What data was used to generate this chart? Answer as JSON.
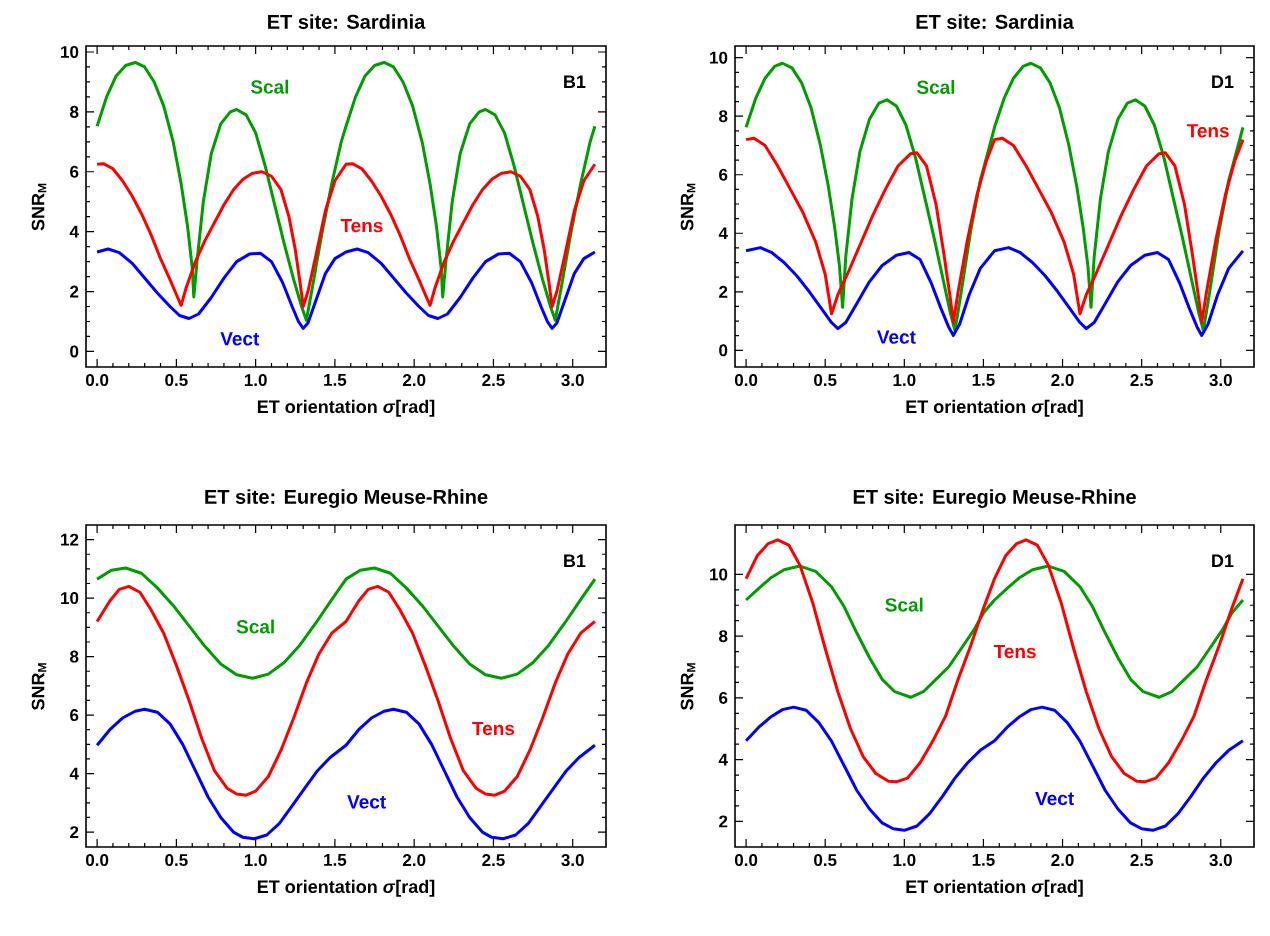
{
  "chart_data": [
    {
      "type": "line",
      "title": "ET site: Sardinia",
      "xlabel": "ET orientation *σ*[rad]",
      "ylabel": "SNR$_{M}$",
      "annotations": [
        "B1"
      ],
      "xlim": [
        -0.07,
        3.21
      ],
      "ylim": [
        -0.52,
        10.2
      ],
      "xticks": [
        {
          "value": 0,
          "label": "0.0"
        },
        {
          "value": 0.5,
          "label": "0.5"
        },
        {
          "value": 1,
          "label": "1.0"
        },
        {
          "value": 1.5,
          "label": "1.5"
        },
        {
          "value": 2,
          "label": "2.0"
        },
        {
          "value": 2.5,
          "label": "2.5"
        },
        {
          "value": 3,
          "label": "3.0"
        }
      ],
      "yticks": [
        0,
        2,
        4,
        6,
        8,
        10
      ],
      "series": [
        {
          "name": "Scal",
          "color": "#009c00",
          "x": [
            0,
            0.06,
            0.12,
            0.18,
            0.24,
            0.3,
            0.36,
            0.42,
            0.48,
            0.53,
            0.57,
            0.6,
            0.61,
            0.63,
            0.67,
            0.72,
            0.78,
            0.84,
            0.88,
            0.94,
            1.0,
            1.06,
            1.12,
            1.18,
            1.24,
            1.29,
            1.32,
            1.36,
            1.42,
            1.48,
            1.54,
            1.57,
            1.63,
            1.69,
            1.75,
            1.81,
            1.87,
            1.93,
            1.99,
            2.05,
            2.1,
            2.14,
            2.17,
            2.18,
            2.2,
            2.24,
            2.29,
            2.35,
            2.41,
            2.45,
            2.51,
            2.57,
            2.63,
            2.69,
            2.75,
            2.81,
            2.86,
            2.89,
            2.93,
            2.99,
            3.05,
            3.11,
            3.14
          ],
          "values": [
            7.52,
            8.5,
            9.2,
            9.55,
            9.65,
            9.5,
            9.0,
            8.2,
            7.0,
            5.6,
            4.2,
            2.8,
            1.82,
            3.0,
            5.0,
            6.6,
            7.6,
            8.0,
            8.08,
            7.9,
            7.3,
            6.2,
            4.9,
            3.6,
            2.4,
            1.5,
            1.04,
            2.2,
            4.0,
            5.6,
            7.0,
            7.52,
            8.5,
            9.2,
            9.55,
            9.65,
            9.5,
            9.0,
            8.2,
            7.0,
            5.6,
            4.2,
            2.8,
            1.82,
            3.0,
            5.0,
            6.6,
            7.6,
            8.0,
            8.08,
            7.9,
            7.3,
            6.2,
            4.9,
            3.6,
            2.4,
            1.5,
            1.04,
            2.2,
            4.0,
            5.6,
            7.0,
            7.52
          ]
        },
        {
          "name": "Tens",
          "color": "#ff0000",
          "x": [
            0,
            0.04,
            0.1,
            0.16,
            0.22,
            0.28,
            0.34,
            0.4,
            0.46,
            0.5,
            0.53,
            0.56,
            0.62,
            0.68,
            0.74,
            0.8,
            0.86,
            0.92,
            0.98,
            1.04,
            1.1,
            1.16,
            1.21,
            1.25,
            1.28,
            1.3,
            1.33,
            1.38,
            1.44,
            1.5,
            1.57,
            1.61,
            1.67,
            1.73,
            1.79,
            1.85,
            1.91,
            1.97,
            2.03,
            2.07,
            2.1,
            2.13,
            2.19,
            2.25,
            2.31,
            2.37,
            2.43,
            2.49,
            2.55,
            2.61,
            2.67,
            2.73,
            2.78,
            2.82,
            2.85,
            2.87,
            2.9,
            2.95,
            3.01,
            3.07,
            3.14
          ],
          "values": [
            6.25,
            6.27,
            6.1,
            5.7,
            5.2,
            4.6,
            3.9,
            3.1,
            2.4,
            1.9,
            1.54,
            2.1,
            3.0,
            3.7,
            4.3,
            4.9,
            5.4,
            5.75,
            5.95,
            6.0,
            5.85,
            5.4,
            4.5,
            3.4,
            2.3,
            1.5,
            2.0,
            3.2,
            4.7,
            5.7,
            6.25,
            6.27,
            6.1,
            5.7,
            5.2,
            4.6,
            3.9,
            3.1,
            2.4,
            1.9,
            1.54,
            2.1,
            3.0,
            3.7,
            4.3,
            4.9,
            5.4,
            5.75,
            5.95,
            6.0,
            5.85,
            5.4,
            4.5,
            3.4,
            2.3,
            1.5,
            2.0,
            3.2,
            4.7,
            5.7,
            6.25
          ]
        },
        {
          "name": "Vect",
          "color": "#0000ff",
          "x": [
            0,
            0.07,
            0.14,
            0.22,
            0.3,
            0.38,
            0.46,
            0.52,
            0.58,
            0.64,
            0.72,
            0.8,
            0.88,
            0.96,
            1.03,
            1.1,
            1.17,
            1.23,
            1.27,
            1.3,
            1.33,
            1.38,
            1.44,
            1.5,
            1.57,
            1.64,
            1.71,
            1.79,
            1.87,
            1.95,
            2.03,
            2.09,
            2.15,
            2.21,
            2.29,
            2.37,
            2.45,
            2.53,
            2.6,
            2.67,
            2.74,
            2.8,
            2.84,
            2.87,
            2.9,
            2.95,
            3.01,
            3.07,
            3.14
          ],
          "values": [
            3.32,
            3.42,
            3.3,
            2.95,
            2.45,
            1.95,
            1.5,
            1.2,
            1.1,
            1.25,
            1.8,
            2.45,
            3.0,
            3.25,
            3.28,
            3.0,
            2.3,
            1.5,
            1.0,
            0.77,
            0.95,
            1.7,
            2.6,
            3.1,
            3.32,
            3.42,
            3.3,
            2.95,
            2.45,
            1.95,
            1.5,
            1.2,
            1.1,
            1.25,
            1.8,
            2.45,
            3.0,
            3.25,
            3.28,
            3.0,
            2.3,
            1.5,
            1.0,
            0.77,
            0.95,
            1.7,
            2.6,
            3.1,
            3.32
          ]
        }
      ]
    },
    {
      "type": "line",
      "title": "ET site: Sardinia",
      "xlabel": "ET orientation *σ*[rad]",
      "ylabel": "SNR$_{M}$",
      "annotations": [
        "D1"
      ],
      "xlim": [
        -0.07,
        3.21
      ],
      "ylim": [
        -0.57,
        10.4
      ],
      "xticks": [
        {
          "value": 0,
          "label": "0.0"
        },
        {
          "value": 0.5,
          "label": "0.5"
        },
        {
          "value": 1,
          "label": "1.0"
        },
        {
          "value": 1.5,
          "label": "1.5"
        },
        {
          "value": 2,
          "label": "2.0"
        },
        {
          "value": 2.5,
          "label": "2.5"
        },
        {
          "value": 3,
          "label": "3.0"
        }
      ],
      "yticks": [
        0,
        2,
        4,
        6,
        8,
        10
      ],
      "series": [
        {
          "name": "Scal",
          "color": "#009c00",
          "x": [
            0,
            0.06,
            0.12,
            0.18,
            0.23,
            0.29,
            0.35,
            0.41,
            0.47,
            0.52,
            0.56,
            0.59,
            0.61,
            0.63,
            0.67,
            0.72,
            0.78,
            0.84,
            0.89,
            0.95,
            1.01,
            1.07,
            1.13,
            1.19,
            1.25,
            1.29,
            1.32,
            1.36,
            1.42,
            1.48,
            1.54,
            1.57,
            1.63,
            1.69,
            1.75,
            1.8,
            1.86,
            1.92,
            1.98,
            2.04,
            2.09,
            2.13,
            2.16,
            2.18,
            2.2,
            2.24,
            2.29,
            2.35,
            2.41,
            2.46,
            2.52,
            2.58,
            2.64,
            2.7,
            2.76,
            2.82,
            2.86,
            2.89,
            2.93,
            2.99,
            3.05,
            3.11,
            3.14
          ],
          "values": [
            7.62,
            8.6,
            9.3,
            9.7,
            9.81,
            9.65,
            9.15,
            8.3,
            7.0,
            5.6,
            4.2,
            2.9,
            1.47,
            3.2,
            5.2,
            6.8,
            7.9,
            8.45,
            8.56,
            8.35,
            7.7,
            6.6,
            5.2,
            3.8,
            2.3,
            1.3,
            0.68,
            2.0,
            4.1,
            5.8,
            7.0,
            7.62,
            8.6,
            9.3,
            9.7,
            9.81,
            9.65,
            9.15,
            8.3,
            7.0,
            5.6,
            4.2,
            2.9,
            1.47,
            3.2,
            5.2,
            6.8,
            7.9,
            8.45,
            8.56,
            8.35,
            7.7,
            6.6,
            5.2,
            3.8,
            2.3,
            1.3,
            0.68,
            2.0,
            4.1,
            5.8,
            7.0,
            7.62
          ]
        },
        {
          "name": "Tens",
          "color": "#ff0000",
          "x": [
            0,
            0.05,
            0.12,
            0.2,
            0.28,
            0.36,
            0.44,
            0.5,
            0.54,
            0.58,
            0.64,
            0.72,
            0.8,
            0.88,
            0.96,
            1.04,
            1.08,
            1.14,
            1.2,
            1.25,
            1.29,
            1.31,
            1.34,
            1.4,
            1.46,
            1.52,
            1.57,
            1.62,
            1.69,
            1.77,
            1.85,
            1.93,
            2.01,
            2.07,
            2.11,
            2.15,
            2.21,
            2.29,
            2.37,
            2.45,
            2.53,
            2.61,
            2.65,
            2.71,
            2.77,
            2.82,
            2.86,
            2.88,
            2.91,
            2.97,
            3.03,
            3.09,
            3.14
          ],
          "values": [
            7.2,
            7.25,
            7.0,
            6.3,
            5.5,
            4.7,
            3.7,
            2.6,
            1.25,
            1.9,
            2.6,
            3.6,
            4.6,
            5.5,
            6.3,
            6.72,
            6.75,
            6.3,
            5.0,
            3.3,
            1.8,
            0.96,
            2.0,
            3.8,
            5.33,
            6.5,
            7.2,
            7.25,
            7.0,
            6.3,
            5.5,
            4.7,
            3.7,
            2.6,
            1.25,
            1.9,
            2.6,
            3.6,
            4.6,
            5.5,
            6.3,
            6.72,
            6.75,
            6.3,
            5.0,
            3.3,
            1.8,
            0.96,
            2.0,
            3.8,
            5.33,
            6.5,
            7.2
          ]
        },
        {
          "name": "Vect",
          "color": "#0000ff",
          "x": [
            0,
            0.09,
            0.16,
            0.24,
            0.32,
            0.4,
            0.48,
            0.54,
            0.58,
            0.63,
            0.7,
            0.78,
            0.86,
            0.95,
            1.03,
            1.1,
            1.17,
            1.23,
            1.28,
            1.31,
            1.35,
            1.41,
            1.48,
            1.57,
            1.66,
            1.73,
            1.81,
            1.89,
            1.97,
            2.05,
            2.11,
            2.15,
            2.2,
            2.27,
            2.35,
            2.43,
            2.52,
            2.6,
            2.67,
            2.74,
            2.8,
            2.85,
            2.88,
            2.92,
            2.98,
            3.05,
            3.14
          ],
          "values": [
            3.4,
            3.51,
            3.35,
            3.0,
            2.55,
            2.0,
            1.4,
            0.95,
            0.74,
            0.95,
            1.6,
            2.35,
            2.9,
            3.25,
            3.34,
            3.1,
            2.3,
            1.45,
            0.8,
            0.51,
            0.9,
            1.9,
            2.8,
            3.4,
            3.51,
            3.35,
            3.0,
            2.55,
            2.0,
            1.4,
            0.95,
            0.74,
            0.95,
            1.6,
            2.35,
            2.9,
            3.25,
            3.34,
            3.1,
            2.3,
            1.45,
            0.8,
            0.51,
            0.9,
            1.9,
            2.8,
            3.4
          ]
        }
      ]
    },
    {
      "type": "line",
      "title": "ET site: Euregio Meuse-Rhine",
      "xlabel": "ET orientation *σ*[rad]",
      "ylabel": "SNR$_{M}$",
      "annotations": [
        "B1"
      ],
      "xlim": [
        -0.07,
        3.21
      ],
      "ylim": [
        1.49,
        12.5
      ],
      "xticks": [
        {
          "value": 0,
          "label": "0.0"
        },
        {
          "value": 0.5,
          "label": "0.5"
        },
        {
          "value": 1,
          "label": "1.0"
        },
        {
          "value": 1.5,
          "label": "1.5"
        },
        {
          "value": 2,
          "label": "2.0"
        },
        {
          "value": 2.5,
          "label": "2.5"
        },
        {
          "value": 3,
          "label": "3.0"
        }
      ],
      "yticks": [
        2,
        4,
        6,
        8,
        10,
        12
      ],
      "series": [
        {
          "name": "Scal",
          "color": "#009c00",
          "x": [
            0,
            0.09,
            0.18,
            0.28,
            0.38,
            0.48,
            0.58,
            0.68,
            0.78,
            0.88,
            0.98,
            1.08,
            1.18,
            1.28,
            1.38,
            1.48,
            1.57,
            1.66,
            1.75,
            1.85,
            1.95,
            2.05,
            2.15,
            2.25,
            2.35,
            2.45,
            2.55,
            2.65,
            2.75,
            2.85,
            2.95,
            3.05,
            3.14
          ],
          "values": [
            10.65,
            10.95,
            11.03,
            10.85,
            10.35,
            9.75,
            9.05,
            8.35,
            7.75,
            7.38,
            7.26,
            7.4,
            7.8,
            8.4,
            9.15,
            9.95,
            10.65,
            10.95,
            11.03,
            10.85,
            10.35,
            9.75,
            9.05,
            8.35,
            7.75,
            7.38,
            7.26,
            7.4,
            7.8,
            8.4,
            9.15,
            9.95,
            10.65
          ]
        },
        {
          "name": "Tens",
          "color": "#ff0000",
          "x": [
            0,
            0.08,
            0.14,
            0.2,
            0.27,
            0.34,
            0.42,
            0.5,
            0.58,
            0.66,
            0.74,
            0.82,
            0.88,
            0.94,
            1.0,
            1.08,
            1.16,
            1.24,
            1.32,
            1.4,
            1.48,
            1.57,
            1.65,
            1.71,
            1.77,
            1.84,
            1.91,
            1.99,
            2.07,
            2.15,
            2.23,
            2.31,
            2.39,
            2.45,
            2.51,
            2.57,
            2.65,
            2.73,
            2.81,
            2.89,
            2.97,
            3.05,
            3.14
          ],
          "values": [
            9.2,
            9.9,
            10.3,
            10.4,
            10.2,
            9.6,
            8.8,
            7.7,
            6.5,
            5.2,
            4.1,
            3.5,
            3.3,
            3.26,
            3.4,
            3.9,
            4.8,
            5.9,
            7.1,
            8.1,
            8.8,
            9.2,
            9.9,
            10.3,
            10.4,
            10.2,
            9.6,
            8.8,
            7.7,
            6.5,
            5.2,
            4.1,
            3.5,
            3.3,
            3.26,
            3.4,
            3.9,
            4.8,
            5.9,
            7.1,
            8.1,
            8.8,
            9.2
          ]
        },
        {
          "name": "Vect",
          "color": "#0000ff",
          "x": [
            0,
            0.08,
            0.16,
            0.24,
            0.3,
            0.38,
            0.46,
            0.54,
            0.62,
            0.7,
            0.78,
            0.86,
            0.92,
            0.99,
            1.07,
            1.15,
            1.23,
            1.31,
            1.39,
            1.47,
            1.57,
            1.65,
            1.73,
            1.81,
            1.87,
            1.95,
            2.03,
            2.11,
            2.19,
            2.27,
            2.35,
            2.43,
            2.49,
            2.56,
            2.64,
            2.72,
            2.8,
            2.88,
            2.96,
            3.04,
            3.14
          ],
          "values": [
            4.97,
            5.5,
            5.9,
            6.13,
            6.2,
            6.1,
            5.7,
            5.0,
            4.1,
            3.2,
            2.5,
            2.0,
            1.82,
            1.77,
            1.9,
            2.3,
            2.9,
            3.5,
            4.1,
            4.55,
            4.97,
            5.5,
            5.9,
            6.13,
            6.2,
            6.1,
            5.7,
            5.0,
            4.1,
            3.2,
            2.5,
            2.0,
            1.82,
            1.77,
            1.9,
            2.3,
            2.9,
            3.5,
            4.1,
            4.55,
            4.97
          ]
        }
      ]
    },
    {
      "type": "line",
      "title": "ET site: Euregio Meuse-Rhine",
      "xlabel": "ET orientation *σ*[rad]",
      "ylabel": "SNR$_{M}$",
      "annotations": [
        "D1"
      ],
      "xlim": [
        -0.07,
        3.21
      ],
      "ylim": [
        1.17,
        11.6
      ],
      "xticks": [
        {
          "value": 0,
          "label": "0.0"
        },
        {
          "value": 0.5,
          "label": "0.5"
        },
        {
          "value": 1,
          "label": "1.0"
        },
        {
          "value": 1.5,
          "label": "1.5"
        },
        {
          "value": 2,
          "label": "2.0"
        },
        {
          "value": 2.5,
          "label": "2.5"
        },
        {
          "value": 3,
          "label": "3.0"
        }
      ],
      "yticks": [
        2,
        4,
        6,
        8,
        10
      ],
      "series": [
        {
          "name": "Scal",
          "color": "#009c00",
          "x": [
            0,
            0.08,
            0.16,
            0.24,
            0.34,
            0.44,
            0.54,
            0.62,
            0.7,
            0.78,
            0.86,
            0.94,
            1.04,
            1.12,
            1.2,
            1.28,
            1.36,
            1.44,
            1.5,
            1.57,
            1.65,
            1.73,
            1.81,
            1.91,
            2.01,
            2.11,
            2.19,
            2.27,
            2.35,
            2.43,
            2.51,
            2.61,
            2.69,
            2.77,
            2.85,
            2.93,
            3.01,
            3.07,
            3.14
          ],
          "values": [
            9.17,
            9.55,
            9.9,
            10.15,
            10.27,
            10.1,
            9.6,
            8.95,
            8.1,
            7.3,
            6.6,
            6.2,
            6.02,
            6.2,
            6.6,
            7.0,
            7.6,
            8.2,
            8.75,
            9.17,
            9.55,
            9.9,
            10.15,
            10.27,
            10.1,
            9.6,
            8.95,
            8.1,
            7.3,
            6.6,
            6.2,
            6.02,
            6.2,
            6.6,
            7.0,
            7.6,
            8.2,
            8.75,
            9.17
          ]
        },
        {
          "name": "Tens",
          "color": "#ff0000",
          "x": [
            0,
            0.07,
            0.14,
            0.2,
            0.27,
            0.34,
            0.42,
            0.5,
            0.58,
            0.66,
            0.74,
            0.82,
            0.9,
            0.95,
            1.02,
            1.1,
            1.18,
            1.26,
            1.34,
            1.42,
            1.5,
            1.57,
            1.64,
            1.71,
            1.77,
            1.84,
            1.91,
            1.99,
            2.07,
            2.15,
            2.23,
            2.31,
            2.39,
            2.47,
            2.52,
            2.59,
            2.67,
            2.75,
            2.83,
            2.91,
            2.99,
            3.07,
            3.14
          ],
          "values": [
            9.86,
            10.6,
            11.0,
            11.12,
            10.95,
            10.3,
            9.1,
            7.6,
            6.2,
            5.0,
            4.1,
            3.55,
            3.3,
            3.28,
            3.4,
            3.9,
            4.6,
            5.4,
            6.6,
            7.7,
            8.9,
            9.86,
            10.6,
            11.0,
            11.12,
            10.95,
            10.3,
            9.1,
            7.6,
            6.2,
            5.0,
            4.1,
            3.55,
            3.3,
            3.28,
            3.4,
            3.9,
            4.6,
            5.4,
            6.6,
            7.7,
            8.9,
            9.86
          ]
        },
        {
          "name": "Vect",
          "color": "#0000ff",
          "x": [
            0,
            0.08,
            0.16,
            0.23,
            0.3,
            0.38,
            0.46,
            0.54,
            0.62,
            0.7,
            0.78,
            0.86,
            0.93,
            1.0,
            1.08,
            1.16,
            1.24,
            1.32,
            1.4,
            1.48,
            1.57,
            1.65,
            1.73,
            1.8,
            1.87,
            1.95,
            2.03,
            2.11,
            2.19,
            2.27,
            2.35,
            2.43,
            2.5,
            2.57,
            2.65,
            2.73,
            2.81,
            2.89,
            2.97,
            3.05,
            3.14
          ],
          "values": [
            4.61,
            5.05,
            5.4,
            5.62,
            5.7,
            5.6,
            5.2,
            4.6,
            3.8,
            3.0,
            2.4,
            1.95,
            1.76,
            1.71,
            1.85,
            2.25,
            2.8,
            3.4,
            3.9,
            4.3,
            4.61,
            5.05,
            5.4,
            5.62,
            5.7,
            5.6,
            5.2,
            4.6,
            3.8,
            3.0,
            2.4,
            1.95,
            1.76,
            1.71,
            1.85,
            2.25,
            2.8,
            3.4,
            3.9,
            4.3,
            4.61
          ]
        }
      ]
    }
  ]
}
